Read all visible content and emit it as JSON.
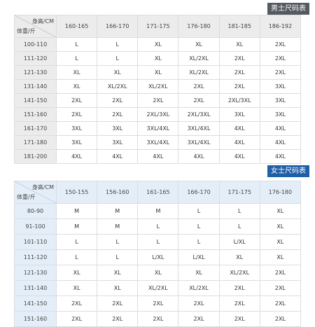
{
  "men": {
    "title": "男士尺码表",
    "corner_top": "身高/CM",
    "corner_bottom": "体重/斤",
    "heights": [
      "160-165",
      "166-170",
      "171-175",
      "176-180",
      "181-185",
      "186-192"
    ],
    "rows": [
      {
        "weight": "100-110",
        "sizes": [
          "L",
          "L",
          "XL",
          "XL",
          "XL",
          "2XL"
        ]
      },
      {
        "weight": "111-120",
        "sizes": [
          "L",
          "L",
          "XL",
          "XL/2XL",
          "2XL",
          "2XL"
        ]
      },
      {
        "weight": "121-130",
        "sizes": [
          "XL",
          "XL",
          "XL",
          "XL/2XL",
          "2XL",
          "2XL"
        ]
      },
      {
        "weight": "131-140",
        "sizes": [
          "XL",
          "XL/2XL",
          "XL/2XL",
          "2XL",
          "2XL",
          "3XL"
        ]
      },
      {
        "weight": "141-150",
        "sizes": [
          "2XL",
          "2XL",
          "2XL",
          "2XL",
          "2XL/3XL",
          "3XL"
        ]
      },
      {
        "weight": "151-160",
        "sizes": [
          "2XL",
          "2XL",
          "2XL/3XL",
          "2XL/3XL",
          "3XL",
          "3XL"
        ]
      },
      {
        "weight": "161-170",
        "sizes": [
          "3XL",
          "3XL",
          "3XL/4XL",
          "3XL/4XL",
          "4XL",
          "4XL"
        ]
      },
      {
        "weight": "171-180",
        "sizes": [
          "3XL",
          "3XL",
          "3XL/4XL",
          "3XL/4XL",
          "4XL",
          "4XL"
        ]
      },
      {
        "weight": "181-200",
        "sizes": [
          "4XL",
          "4XL",
          "4XL",
          "4XL",
          "4XL",
          "4XL"
        ]
      }
    ]
  },
  "women": {
    "title": "女士尺码表",
    "corner_top": "身高/CM",
    "corner_bottom": "体重/斤",
    "heights": [
      "150-155",
      "156-160",
      "161-165",
      "166-170",
      "171-175",
      "176-180"
    ],
    "rows": [
      {
        "weight": "80-90",
        "sizes": [
          "M",
          "M",
          "M",
          "L",
          "L",
          "XL"
        ]
      },
      {
        "weight": "91-100",
        "sizes": [
          "M",
          "M",
          "L",
          "L",
          "L",
          "XL"
        ]
      },
      {
        "weight": "101-110",
        "sizes": [
          "L",
          "L",
          "L",
          "L",
          "L/XL",
          "XL"
        ]
      },
      {
        "weight": "111-120",
        "sizes": [
          "L",
          "L",
          "L/XL",
          "L/XL",
          "XL",
          "XL"
        ]
      },
      {
        "weight": "121-130",
        "sizes": [
          "XL",
          "XL",
          "XL",
          "XL",
          "XL/2XL",
          "2XL"
        ]
      },
      {
        "weight": "131-140",
        "sizes": [
          "XL",
          "XL",
          "XL/2XL",
          "XL/2XL",
          "2XL",
          "2XL"
        ]
      },
      {
        "weight": "141-150",
        "sizes": [
          "2XL",
          "2XL",
          "2XL",
          "2XL",
          "2XL",
          "2XL"
        ]
      },
      {
        "weight": "151-160",
        "sizes": [
          "2XL",
          "2XL",
          "2XL",
          "2XL",
          "2XL",
          "2XL"
        ]
      }
    ]
  },
  "colors": {
    "men_title_bg": "#555a60",
    "women_title_bg": "#1f5fa8",
    "men_header_bg": "#ececec",
    "women_header_bg": "#e4eef8",
    "grid_line": "#d9dde2"
  }
}
